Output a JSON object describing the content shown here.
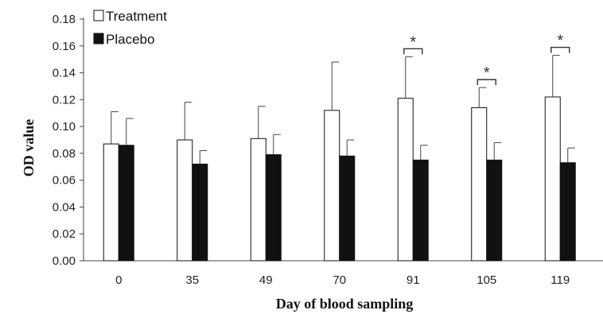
{
  "chart_data": {
    "type": "bar",
    "title": "",
    "xlabel": "Day of blood sampling",
    "ylabel": "OD value",
    "ylim": [
      0,
      0.18
    ],
    "yticks": [
      "0.00",
      "0.02",
      "0.04",
      "0.06",
      "0.08",
      "0.10",
      "0.12",
      "0.14",
      "0.16",
      "0.18"
    ],
    "categories": [
      "0",
      "35",
      "49",
      "70",
      "91",
      "105",
      "119"
    ],
    "legend_position": "top-left",
    "grid": false,
    "series": [
      {
        "name": "Treatment",
        "color": "#ffffff",
        "values": [
          0.087,
          0.09,
          0.091,
          0.112,
          0.121,
          0.114,
          0.122
        ],
        "errors": [
          0.024,
          0.028,
          0.024,
          0.036,
          0.031,
          0.015,
          0.031
        ]
      },
      {
        "name": "Placebo",
        "color": "#111111",
        "values": [
          0.086,
          0.072,
          0.079,
          0.078,
          0.075,
          0.075,
          0.073
        ],
        "errors": [
          0.02,
          0.01,
          0.015,
          0.012,
          0.011,
          0.013,
          0.011
        ]
      }
    ],
    "significance": [
      {
        "category": "91",
        "label": "*"
      },
      {
        "category": "105",
        "label": "*"
      },
      {
        "category": "119",
        "label": "*"
      }
    ]
  }
}
